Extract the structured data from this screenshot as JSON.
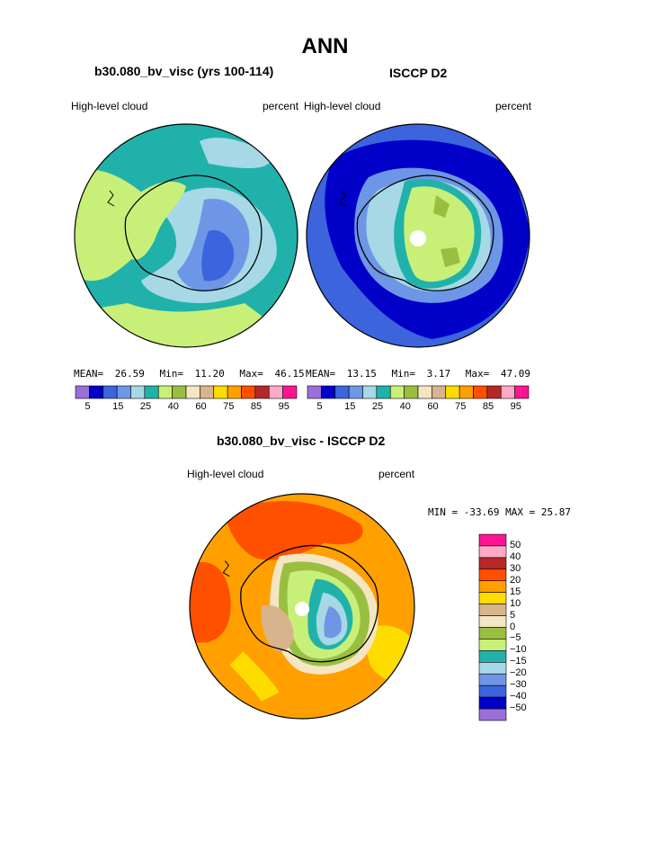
{
  "main_title": "ANN",
  "top_left": {
    "case_title": "b30.080_bv_visc (yrs 100-114)",
    "left_label": "High-level cloud",
    "right_label": "percent",
    "stats": {
      "mean_label": "MEAN=",
      "mean": "26.59",
      "min_label": "Min=",
      "min": "11.20",
      "max_label": "Max=",
      "max": "46.15"
    }
  },
  "top_right": {
    "case_title": "ISCCP D2",
    "left_label": "High-level cloud",
    "right_label": "percent",
    "stats": {
      "mean_label": "MEAN=",
      "mean": "13.15",
      "min_label": "Min=",
      "min": "3.17",
      "max_label": "Max=",
      "max": "47.09"
    }
  },
  "abs_colorbar": {
    "colors": [
      "#9a6fd8",
      "#0000c8",
      "#3c64dc",
      "#6e96e6",
      "#a6d8e6",
      "#20b2aa",
      "#c8f078",
      "#9abf40",
      "#f5e6c3",
      "#d8b48c",
      "#ffdc00",
      "#ffa000",
      "#ff5000",
      "#b42828",
      "#ffaac8",
      "#ff1493"
    ],
    "tick_labels": [
      "5",
      "15",
      "25",
      "40",
      "60",
      "75",
      "85",
      "95"
    ]
  },
  "bottom": {
    "case_title": "b30.080_bv_visc - ISCCP D2",
    "left_label": "High-level cloud",
    "right_label": "percent",
    "minmax": "MIN = -33.69 MAX =  25.87"
  },
  "diff_colorbar": {
    "colors": [
      "#ff1493",
      "#ffaac8",
      "#b42828",
      "#ff5000",
      "#ffa000",
      "#ffdc00",
      "#d8b48c",
      "#f5e6c3",
      "#9abf40",
      "#c8f078",
      "#20b2aa",
      "#a6d8e6",
      "#6e96e6",
      "#3c64dc",
      "#0000c8",
      "#9a6fd8"
    ],
    "tick_labels": [
      "50",
      "40",
      "30",
      "20",
      "15",
      "10",
      "5",
      "0",
      "−5",
      "−10",
      "−15",
      "−20",
      "−30",
      "−40",
      "−50"
    ]
  }
}
